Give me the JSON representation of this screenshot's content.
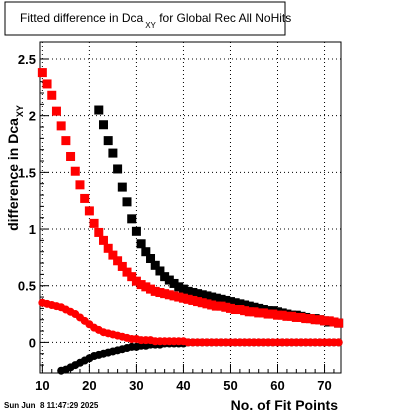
{
  "chart_data": {
    "type": "scatter",
    "title": "Fitted difference in Dca",
    "title_sub": "XY",
    "title_suffix": " for Global Rec All NoHits",
    "xlabel": "No. of Fit Points",
    "ylabel": "difference in Dca",
    "ylabel_sub": "XY",
    "xlim": [
      9.5,
      73.5
    ],
    "ylim": [
      -0.27,
      2.65
    ],
    "grid": true,
    "xticks": [
      10,
      20,
      30,
      40,
      50,
      60,
      70
    ],
    "yticks": [
      0,
      0.5,
      1,
      1.5,
      2,
      2.5
    ],
    "xtick_labels": [
      "10",
      "20",
      "30",
      "40",
      "50",
      "60",
      "70"
    ],
    "ytick_labels": [
      "0",
      "0.5",
      "1",
      "1.5",
      "2",
      "2.5"
    ],
    "x": [
      10,
      11,
      12,
      13,
      14,
      15,
      16,
      17,
      18,
      19,
      20,
      21,
      22,
      23,
      24,
      25,
      26,
      27,
      28,
      29,
      30,
      31,
      32,
      33,
      34,
      35,
      36,
      37,
      38,
      39,
      40,
      41,
      42,
      43,
      44,
      45,
      46,
      47,
      48,
      49,
      50,
      51,
      52,
      53,
      54,
      55,
      56,
      57,
      58,
      59,
      60,
      61,
      62,
      63,
      64,
      65,
      66,
      67,
      68,
      69,
      70,
      71,
      72,
      73
    ],
    "series": [
      {
        "color": "#000000",
        "marker": "square",
        "values": [
          null,
          null,
          null,
          null,
          null,
          null,
          null,
          null,
          null,
          null,
          null,
          null,
          2.05,
          1.92,
          1.78,
          1.67,
          1.53,
          1.37,
          1.24,
          1.09,
          0.98,
          0.87,
          0.8,
          0.74,
          0.68,
          0.63,
          0.58,
          0.55,
          0.52,
          0.49,
          0.47,
          0.45,
          0.44,
          0.43,
          0.42,
          0.41,
          0.4,
          0.39,
          0.38,
          0.37,
          0.36,
          0.35,
          0.34,
          0.33,
          0.32,
          0.31,
          0.3,
          0.29,
          0.28,
          0.28,
          0.27,
          0.26,
          0.25,
          0.24,
          0.24,
          0.23,
          0.22,
          0.21,
          0.21,
          0.2,
          0.19,
          0.18,
          0.18,
          0.17
        ]
      },
      {
        "color": "#ff0000",
        "marker": "square",
        "values": [
          2.38,
          2.28,
          2.18,
          2.04,
          1.91,
          1.78,
          1.64,
          1.51,
          1.39,
          1.27,
          1.16,
          1.05,
          0.97,
          0.9,
          0.83,
          0.77,
          0.72,
          0.67,
          0.62,
          0.58,
          0.54,
          0.51,
          0.49,
          0.47,
          0.45,
          0.44,
          0.43,
          0.42,
          0.41,
          0.4,
          0.39,
          0.38,
          0.37,
          0.36,
          0.35,
          0.34,
          0.33,
          0.32,
          0.32,
          0.31,
          0.3,
          0.29,
          0.29,
          0.28,
          0.27,
          0.27,
          0.26,
          0.26,
          0.25,
          0.25,
          0.24,
          0.24,
          0.23,
          0.23,
          0.22,
          0.22,
          0.21,
          0.21,
          0.2,
          0.2,
          0.19,
          0.19,
          0.18,
          0.17
        ]
      },
      {
        "color": "#000000",
        "marker": "circle",
        "values": [
          null,
          null,
          null,
          null,
          -0.25,
          -0.24,
          -0.22,
          -0.2,
          -0.18,
          -0.16,
          -0.14,
          -0.12,
          -0.11,
          -0.1,
          -0.09,
          -0.08,
          -0.07,
          -0.06,
          -0.05,
          -0.04,
          -0.04,
          -0.03,
          -0.03,
          -0.02,
          -0.02,
          -0.02,
          -0.01,
          -0.01,
          -0.01,
          -0.01,
          -0.01,
          0.0,
          0.0,
          0.0,
          0.0,
          0.0,
          0.0,
          0.0,
          0.0,
          0.0,
          0.0,
          0.0,
          0.0,
          0.0,
          0.0,
          0.0,
          0.0,
          0.0,
          0.0,
          0.0,
          0.0,
          0.0,
          0.0,
          0.0,
          0.0,
          0.0,
          0.0,
          0.0,
          0.0,
          0.0,
          0.0,
          0.0,
          0.0,
          0.0
        ]
      },
      {
        "color": "#ff0000",
        "marker": "circle",
        "values": [
          0.35,
          0.34,
          0.33,
          0.32,
          0.31,
          0.29,
          0.27,
          0.25,
          0.22,
          0.19,
          0.16,
          0.13,
          0.11,
          0.09,
          0.08,
          0.07,
          0.06,
          0.05,
          0.04,
          0.03,
          0.03,
          0.02,
          0.02,
          0.02,
          0.01,
          0.01,
          0.01,
          0.01,
          0.01,
          0.01,
          0.01,
          0.0,
          0.0,
          0.0,
          0.0,
          0.0,
          0.0,
          0.0,
          0.0,
          0.0,
          0.0,
          0.0,
          0.0,
          0.0,
          0.0,
          0.0,
          0.0,
          0.0,
          0.0,
          0.0,
          0.0,
          0.0,
          0.0,
          0.0,
          0.0,
          0.0,
          0.0,
          0.0,
          0.0,
          0.0,
          0.0,
          0.0,
          0.0,
          0.0
        ]
      }
    ]
  },
  "footer": {
    "timestamp": "Sun Jun  8 11:47:29 2025"
  }
}
